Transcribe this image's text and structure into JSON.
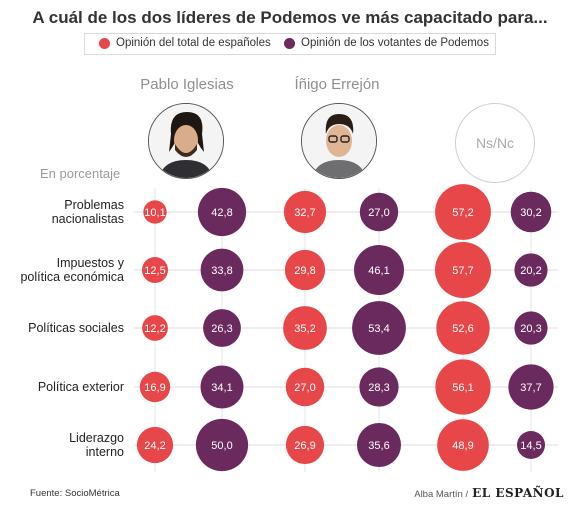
{
  "title": "A cuál de los dos líderes de Podemos ve más capacitado para...",
  "legend": [
    {
      "label": "Opinión del total de españoles",
      "color": "#e8474a"
    },
    {
      "label": "Opinión de los votantes de Podemos",
      "color": "#6b2a5e"
    }
  ],
  "columns": [
    "Pablo Iglesias",
    "Íñigo Errejón",
    "Ns/Nc"
  ],
  "subtitle": "En porcentaje",
  "colors": {
    "general": "#e8474a",
    "podemos": "#6b2a5e"
  },
  "chart_data": {
    "type": "bubble-matrix",
    "categories": [
      "Problemas nacionalistas",
      "Impuestos y política económica",
      "Políticas sociales",
      "Política exterior",
      "Liderazgo interno"
    ],
    "category_lines": [
      [
        "Problemas",
        "nacionalistas"
      ],
      [
        "Impuestos y",
        "política económica"
      ],
      [
        "Políticas sociales"
      ],
      [
        "Política exterior"
      ],
      [
        "Liderazgo",
        "interno"
      ]
    ],
    "groups": [
      "Pablo Iglesias",
      "Íñigo Errejón",
      "Ns/Nc"
    ],
    "series": [
      {
        "name": "Opinión del total de españoles",
        "group": "Pablo Iglesias",
        "labels": [
          "10,1",
          "12,5",
          "12,2",
          "16,9",
          "24,2"
        ],
        "values": [
          10.1,
          12.5,
          12.2,
          16.9,
          24.2
        ]
      },
      {
        "name": "Opinión de los votantes de Podemos",
        "group": "Pablo Iglesias",
        "labels": [
          "42,8",
          "33,8",
          "26,3",
          "34,1",
          "50,0"
        ],
        "values": [
          42.8,
          33.8,
          26.3,
          34.1,
          50.0
        ]
      },
      {
        "name": "Opinión del total de españoles",
        "group": "Íñigo Errejón",
        "labels": [
          "32,7",
          "29,8",
          "35,2",
          "27,0",
          "26,9"
        ],
        "values": [
          32.7,
          29.8,
          35.2,
          27.0,
          26.9
        ]
      },
      {
        "name": "Opinión de los votantes de Podemos",
        "group": "Íñigo Errejón",
        "labels": [
          "27,0",
          "46,1",
          "53,4",
          "28,3",
          "35,6"
        ],
        "values": [
          27.0,
          46.1,
          53.4,
          28.3,
          35.6
        ]
      },
      {
        "name": "Opinión del total de españoles",
        "group": "Ns/Nc",
        "labels": [
          "57,2",
          "57,7",
          "52,6",
          "56,1",
          "48,9"
        ],
        "values": [
          57.2,
          57.7,
          52.6,
          56.1,
          48.9
        ]
      },
      {
        "name": "Opinión de los votantes de Podemos",
        "group": "Ns/Nc",
        "labels": [
          "30,2",
          "20,2",
          "20,3",
          "37,7",
          "14,5"
        ],
        "values": [
          30.2,
          20.2,
          20.3,
          37.7,
          14.5
        ]
      }
    ]
  },
  "source": "Fuente: SocioMétrica",
  "author": "Alba Martín /",
  "brand": "EL ESPAÑOL"
}
